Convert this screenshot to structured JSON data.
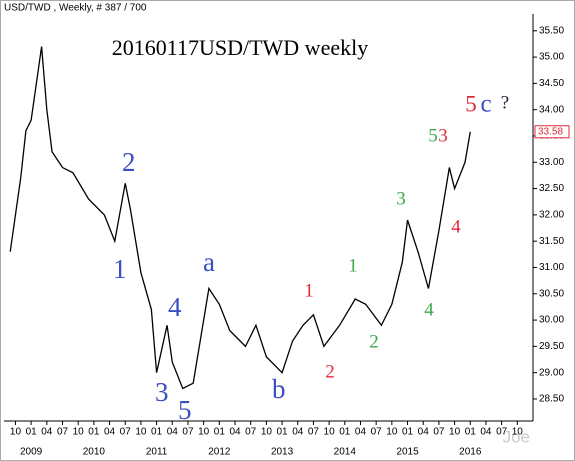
{
  "chart_data": {
    "type": "line",
    "header": "USD/TWD , Weekly, # 387 / 700",
    "title": "20160117USD/TWD weekly",
    "watermark": "Joe",
    "annotations": [
      "2",
      "1",
      "4",
      "3",
      "5",
      "a",
      "b",
      "1",
      "2",
      "1",
      "2",
      "3",
      "4",
      "5",
      "3",
      "4",
      "5",
      "c",
      "?"
    ],
    "x": [
      "2008-09",
      "2008-11",
      "2008-12",
      "2009-01",
      "2009-03",
      "2009-04",
      "2009-05",
      "2009-07",
      "2009-09",
      "2009-12",
      "2010-03",
      "2010-05",
      "2010-07",
      "2010-08",
      "2010-10",
      "2010-12",
      "2011-01",
      "2011-03",
      "2011-04",
      "2011-06",
      "2011-08",
      "2011-09",
      "2011-11",
      "2012-01",
      "2012-03",
      "2012-06",
      "2012-08",
      "2012-10",
      "2013-01",
      "2013-03",
      "2013-05",
      "2013-07",
      "2013-09",
      "2013-12",
      "2014-03",
      "2014-05",
      "2014-08",
      "2014-10",
      "2014-12",
      "2015-01",
      "2015-03",
      "2015-05",
      "2015-07",
      "2015-09",
      "2015-10",
      "2015-12",
      "2016-01"
    ],
    "series": [
      {
        "name": "USD/TWD",
        "color": "#000000",
        "values": [
          31.3,
          32.7,
          33.6,
          33.8,
          35.2,
          34.0,
          33.2,
          32.9,
          32.8,
          32.3,
          32.0,
          31.5,
          32.6,
          32.1,
          30.9,
          30.2,
          29.0,
          29.9,
          29.2,
          28.7,
          28.8,
          29.4,
          30.6,
          30.3,
          29.8,
          29.5,
          29.9,
          29.3,
          29.0,
          29.6,
          29.9,
          30.1,
          29.5,
          29.9,
          30.4,
          30.3,
          29.9,
          30.3,
          31.1,
          31.9,
          31.3,
          30.6,
          31.7,
          32.9,
          32.5,
          33.0,
          33.58
        ]
      }
    ],
    "last_price": 33.58,
    "xlim": [
      "2008-08",
      "2017-01"
    ],
    "ylim": [
      28.1,
      35.8
    ],
    "yticks": [
      {
        "value": 28.5,
        "label": "28.50"
      },
      {
        "value": 29,
        "label": "29.00"
      },
      {
        "value": 29.5,
        "label": "29.50"
      },
      {
        "value": 30,
        "label": "30.00"
      },
      {
        "value": 30.5,
        "label": "30.50"
      },
      {
        "value": 31,
        "label": "31.00"
      },
      {
        "value": 31.5,
        "label": "31.50"
      },
      {
        "value": 32,
        "label": "32.00"
      },
      {
        "value": 32.5,
        "label": "32.50"
      },
      {
        "value": 33,
        "label": "33.00"
      },
      {
        "value": 33.5,
        "label": "33.50"
      },
      {
        "value": 34,
        "label": "34.00"
      },
      {
        "value": 34.5,
        "label": "34.50"
      },
      {
        "value": 35,
        "label": "35.00"
      },
      {
        "value": 35.5,
        "label": "35.50"
      }
    ],
    "xticks": [
      {
        "value": "2008-10",
        "label": "10"
      },
      {
        "value": "2009-01",
        "label": "01"
      },
      {
        "value": "2009-04",
        "label": "04"
      },
      {
        "value": "2009-07",
        "label": "07"
      },
      {
        "value": "2009-10",
        "label": "10"
      },
      {
        "value": "2010-01",
        "label": "01"
      },
      {
        "value": "2010-04",
        "label": "04"
      },
      {
        "value": "2010-07",
        "label": "07"
      },
      {
        "value": "2010-10",
        "label": "10"
      },
      {
        "value": "2011-01",
        "label": "01"
      },
      {
        "value": "2011-04",
        "label": "04"
      },
      {
        "value": "2011-07",
        "label": "07"
      },
      {
        "value": "2011-10",
        "label": "10"
      },
      {
        "value": "2012-01",
        "label": "01"
      },
      {
        "value": "2012-04",
        "label": "04"
      },
      {
        "value": "2012-07",
        "label": "07"
      },
      {
        "value": "2012-10",
        "label": "10"
      },
      {
        "value": "2013-01",
        "label": "01"
      },
      {
        "value": "2013-04",
        "label": "04"
      },
      {
        "value": "2013-07",
        "label": "07"
      },
      {
        "value": "2013-10",
        "label": "10"
      },
      {
        "value": "2014-01",
        "label": "01"
      },
      {
        "value": "2014-04",
        "label": "04"
      },
      {
        "value": "2014-07",
        "label": "07"
      },
      {
        "value": "2014-10",
        "label": "10"
      },
      {
        "value": "2015-01",
        "label": "01"
      },
      {
        "value": "2015-04",
        "label": "04"
      },
      {
        "value": "2015-07",
        "label": "07"
      },
      {
        "value": "2015-10",
        "label": "10"
      },
      {
        "value": "2016-01",
        "label": "01"
      },
      {
        "value": "2016-04",
        "label": "04"
      },
      {
        "value": "2016-07",
        "label": "07"
      },
      {
        "value": "2016-10",
        "label": "10"
      }
    ],
    "year_labels": [
      {
        "value": "2009-01",
        "label": "2009"
      },
      {
        "value": "2010-01",
        "label": "2010"
      },
      {
        "value": "2011-01",
        "label": "2011"
      },
      {
        "value": "2012-01",
        "label": "2012"
      },
      {
        "value": "2013-01",
        "label": "2013"
      },
      {
        "value": "2014-01",
        "label": "2014"
      },
      {
        "value": "2015-01",
        "label": "2015"
      },
      {
        "value": "2016-01",
        "label": "2016"
      }
    ],
    "last_price_color": "#e02a3a"
  }
}
